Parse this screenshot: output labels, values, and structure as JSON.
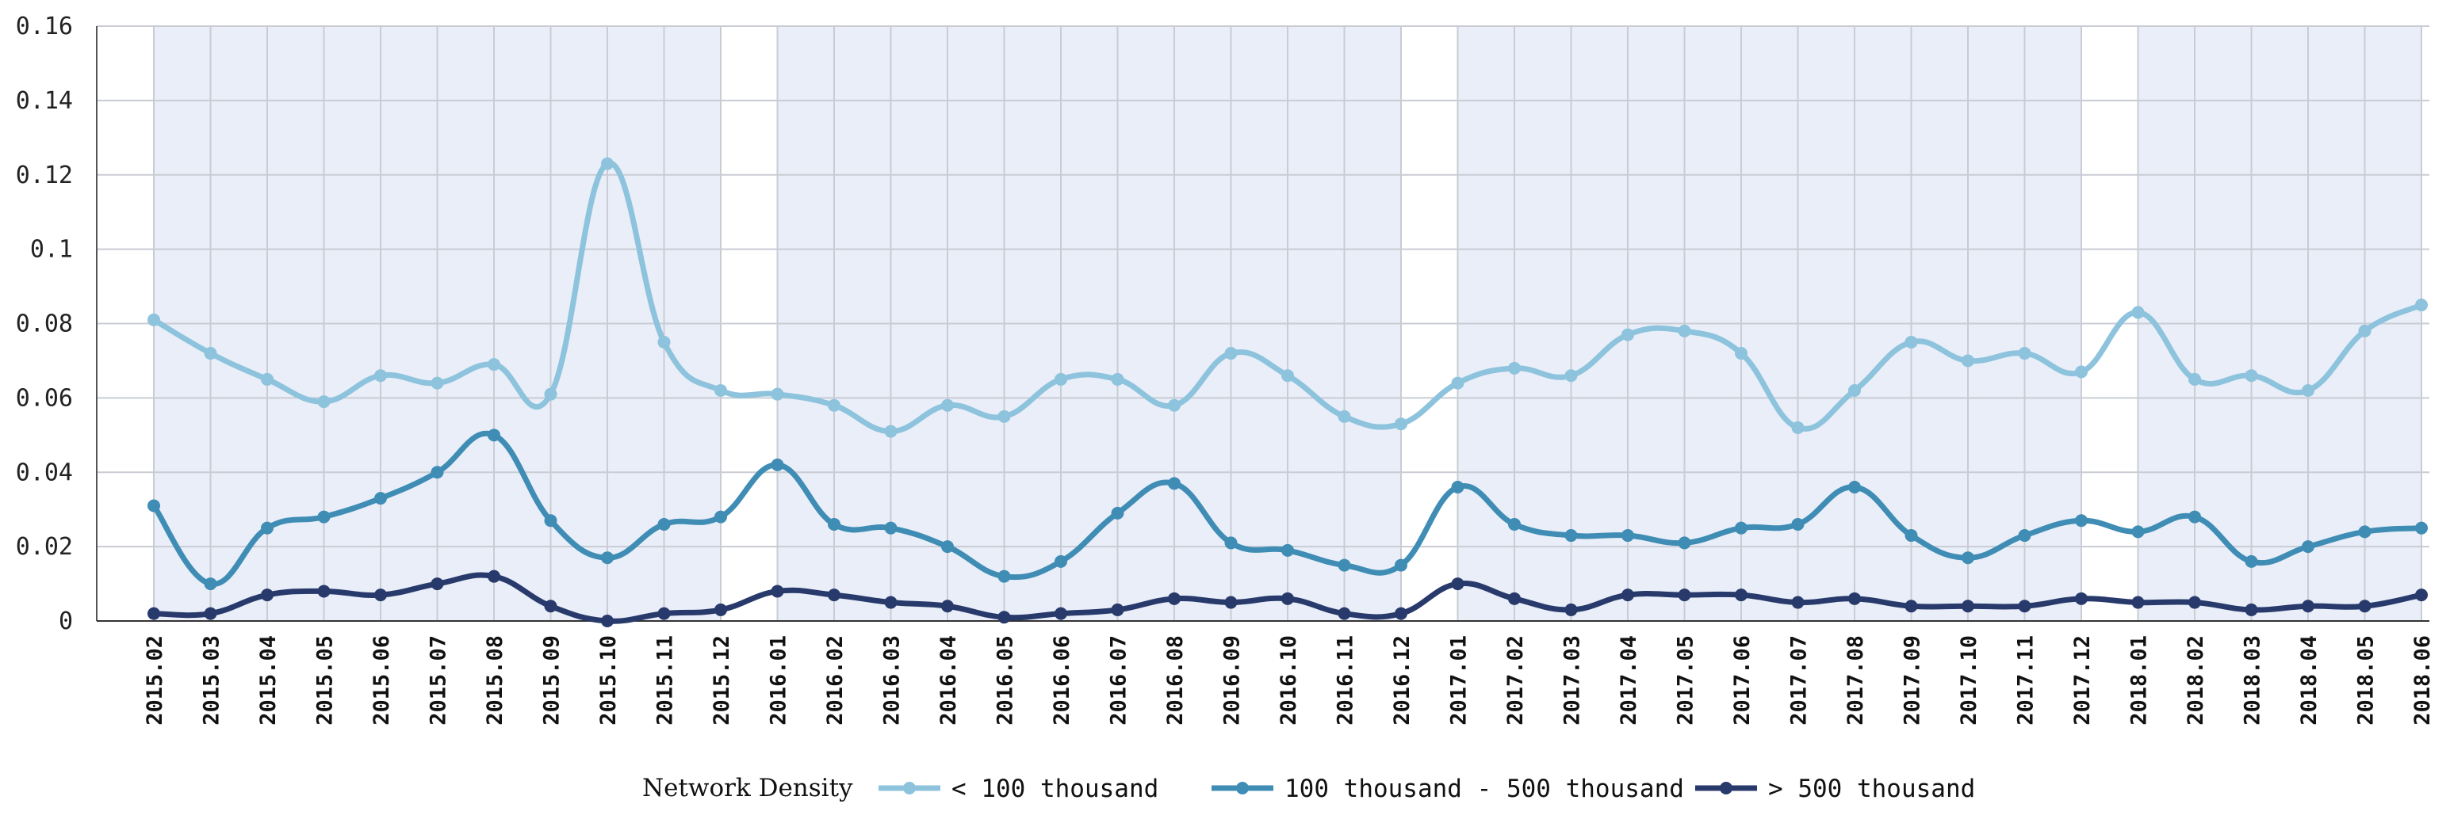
{
  "chart_data": {
    "type": "line",
    "title": "",
    "xlabel": "",
    "ylabel": "",
    "ylim": [
      0,
      0.16
    ],
    "yticks": [
      0,
      0.02,
      0.04,
      0.06,
      0.08,
      0.1,
      0.12,
      0.14,
      0.16
    ],
    "ytick_labels": [
      "0",
      "0.02",
      "0.04",
      "0.06",
      "0.08",
      "0.1",
      "0.12",
      "0.14",
      "0.16"
    ],
    "grid": true,
    "legend_title": "Network Density",
    "legend_position": "bottom",
    "categories": [
      "2015.02",
      "2015.03",
      "2015.04",
      "2015.05",
      "2015.06",
      "2015.07",
      "2015.08",
      "2015.09",
      "2015.10",
      "2015.11",
      "2015.12",
      "2016.01",
      "2016.02",
      "2016.03",
      "2016.04",
      "2016.05",
      "2016.06",
      "2016.07",
      "2016.08",
      "2016.09",
      "2016.10",
      "2016.11",
      "2016.12",
      "2017.01",
      "2017.02",
      "2017.03",
      "2017.04",
      "2017.05",
      "2017.06",
      "2017.07",
      "2017.08",
      "2017.09",
      "2017.10",
      "2017.11",
      "2017.12",
      "2018.01",
      "2018.02",
      "2018.03",
      "2018.04",
      "2018.05",
      "2018.06"
    ],
    "shaded_bands": [
      [
        0,
        10
      ],
      [
        11,
        22
      ],
      [
        23,
        34
      ],
      [
        35,
        40
      ]
    ],
    "series": [
      {
        "name": "< 100 thousand",
        "color": "#8dc3dc",
        "values": [
          0.081,
          0.072,
          0.065,
          0.059,
          0.066,
          0.064,
          0.069,
          0.061,
          0.123,
          0.075,
          0.062,
          0.061,
          0.058,
          0.051,
          0.058,
          0.055,
          0.065,
          0.065,
          0.058,
          0.072,
          0.066,
          0.055,
          0.053,
          0.064,
          0.068,
          0.066,
          0.077,
          0.078,
          0.072,
          0.052,
          0.062,
          0.075,
          0.07,
          0.072,
          0.067,
          0.083,
          0.065,
          0.066,
          0.062,
          0.078,
          0.085
        ]
      },
      {
        "name": "100 thousand - 500 thousand",
        "color": "#3f8db5",
        "values": [
          0.031,
          0.01,
          0.025,
          0.028,
          0.033,
          0.04,
          0.05,
          0.027,
          0.017,
          0.026,
          0.028,
          0.042,
          0.026,
          0.025,
          0.02,
          0.012,
          0.016,
          0.029,
          0.037,
          0.021,
          0.019,
          0.015,
          0.015,
          0.036,
          0.026,
          0.023,
          0.023,
          0.021,
          0.025,
          0.026,
          0.036,
          0.023,
          0.017,
          0.023,
          0.027,
          0.024,
          0.028,
          0.016,
          0.02,
          0.024,
          0.025
        ]
      },
      {
        "name": "> 500 thousand",
        "color": "#283a6b",
        "values": [
          0.002,
          0.002,
          0.007,
          0.008,
          0.007,
          0.01,
          0.012,
          0.004,
          0.0,
          0.002,
          0.003,
          0.008,
          0.007,
          0.005,
          0.004,
          0.001,
          0.002,
          0.003,
          0.006,
          0.005,
          0.006,
          0.002,
          0.002,
          0.01,
          0.006,
          0.003,
          0.007,
          0.007,
          0.007,
          0.005,
          0.006,
          0.004,
          0.004,
          0.004,
          0.006,
          0.005,
          0.005,
          0.003,
          0.004,
          0.004,
          0.007
        ]
      }
    ]
  }
}
